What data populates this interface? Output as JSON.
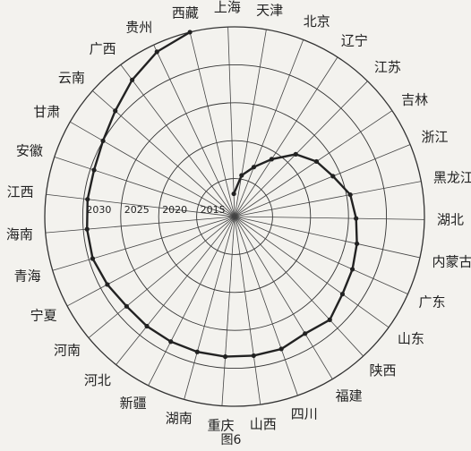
{
  "chart_data": {
    "type": "radar",
    "title": "",
    "figure_label": "图6",
    "rings": [
      {
        "label": "2015",
        "value": 2015
      },
      {
        "label": "2020",
        "value": 2020
      },
      {
        "label": "2025",
        "value": 2025
      },
      {
        "label": "2030",
        "value": 2030
      }
    ],
    "r_range": [
      2010,
      2035
    ],
    "categories": [
      "上海",
      "天津",
      "北京",
      "辽宁",
      "江苏",
      "吉林",
      "浙江",
      "黑龙江",
      "湖北",
      "内蒙古",
      "广东",
      "山东",
      "陕西",
      "福建",
      "四川",
      "山西",
      "重庆",
      "湖南",
      "新疆",
      "河北",
      "河南",
      "宁夏",
      "青海",
      "海南",
      "江西",
      "安徽",
      "甘肃",
      "云南",
      "广西",
      "贵州",
      "西藏"
    ],
    "series": [
      {
        "values": [
          2013,
          2015.5,
          2017,
          2019,
          2021.5,
          2023,
          2024,
          2025.5,
          2026,
          2026.5,
          2027,
          2027.5,
          2028.5,
          2028,
          2028.5,
          2028.5,
          2028.5,
          2028.5,
          2028.5,
          2028.5,
          2028.5,
          2029,
          2029.5,
          2029.5,
          2029.5,
          2029.5,
          2030,
          2031,
          2032.5,
          2034,
          2035
        ]
      }
    ]
  }
}
